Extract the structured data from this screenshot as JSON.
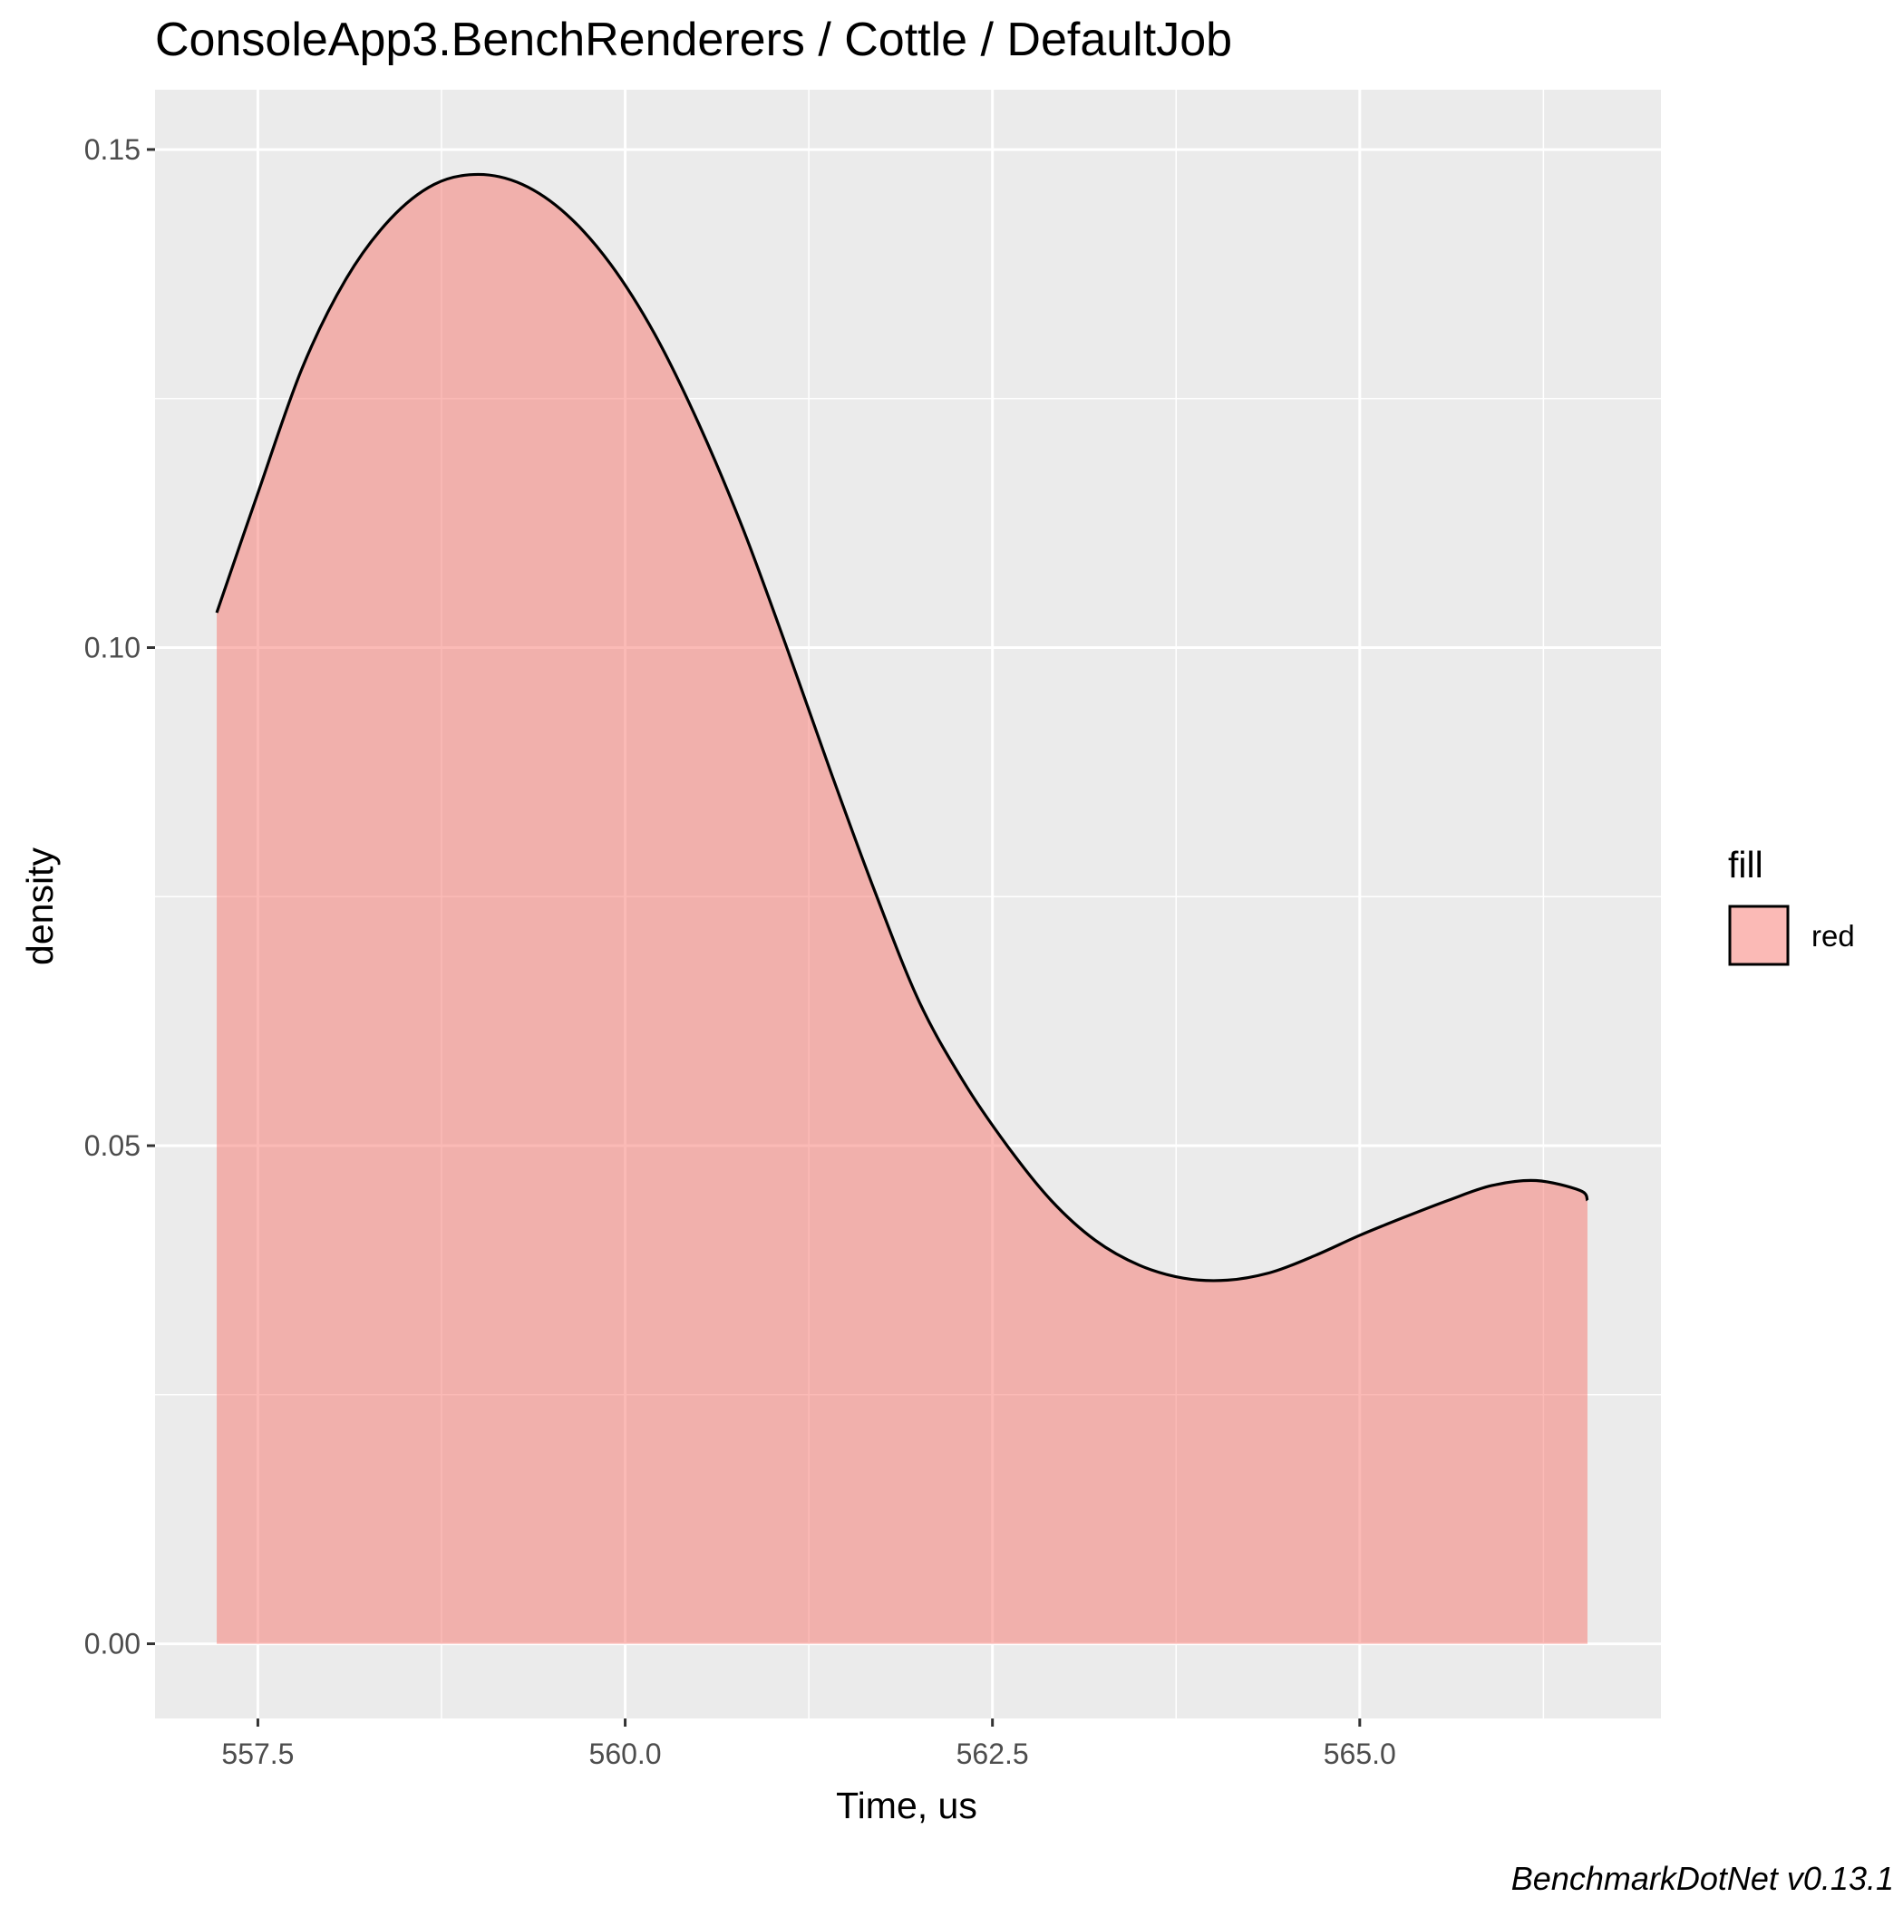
{
  "chart_data": {
    "type": "area",
    "title": "ConsoleApp3.BenchRenderers / Cottle / DefaultJob",
    "xlabel": "Time, us",
    "ylabel": "density",
    "caption": "BenchmarkDotNet v0.13.1",
    "xlim": [
      556.8,
      567.05
    ],
    "ylim": [
      -0.0075,
      0.156
    ],
    "x_ticks": [
      557.5,
      560.0,
      562.5,
      565.0
    ],
    "x_tick_labels": [
      "557.5",
      "560.0",
      "562.5",
      "565.0"
    ],
    "y_ticks": [
      0.0,
      0.05,
      0.1,
      0.15
    ],
    "y_tick_labels": [
      "0.00",
      "0.05",
      "0.10",
      "0.15"
    ],
    "grid": true,
    "legend": {
      "title": "fill",
      "position": "right",
      "entries": [
        {
          "label": "red",
          "color": "#F8766D"
        }
      ]
    },
    "colors": {
      "fill": "#F8766D",
      "fill_opacity": 0.5,
      "line": "#000000",
      "panel_background": "#EBEBEB",
      "grid": "#FFFFFF"
    },
    "series": [
      {
        "x": [
          557.22,
          557.5,
          557.8,
          558.1,
          558.4,
          558.7,
          559.0,
          559.3,
          559.6,
          559.9,
          560.2,
          560.5,
          560.8,
          561.1,
          561.4,
          561.7,
          562.0,
          562.3,
          562.6,
          562.9,
          563.2,
          563.5,
          563.8,
          564.1,
          564.4,
          564.7,
          565.0,
          565.3,
          565.6,
          565.9,
          566.2,
          566.5,
          566.55
        ],
        "y": [
          0.1035,
          0.1155,
          0.128,
          0.137,
          0.143,
          0.1465,
          0.1475,
          0.1465,
          0.1435,
          0.1385,
          0.1315,
          0.1225,
          0.112,
          0.1,
          0.0875,
          0.0755,
          0.0645,
          0.0565,
          0.05,
          0.0445,
          0.0405,
          0.038,
          0.0367,
          0.0365,
          0.0373,
          0.039,
          0.041,
          0.0428,
          0.0445,
          0.046,
          0.0465,
          0.0455,
          0.0445
        ]
      }
    ]
  }
}
